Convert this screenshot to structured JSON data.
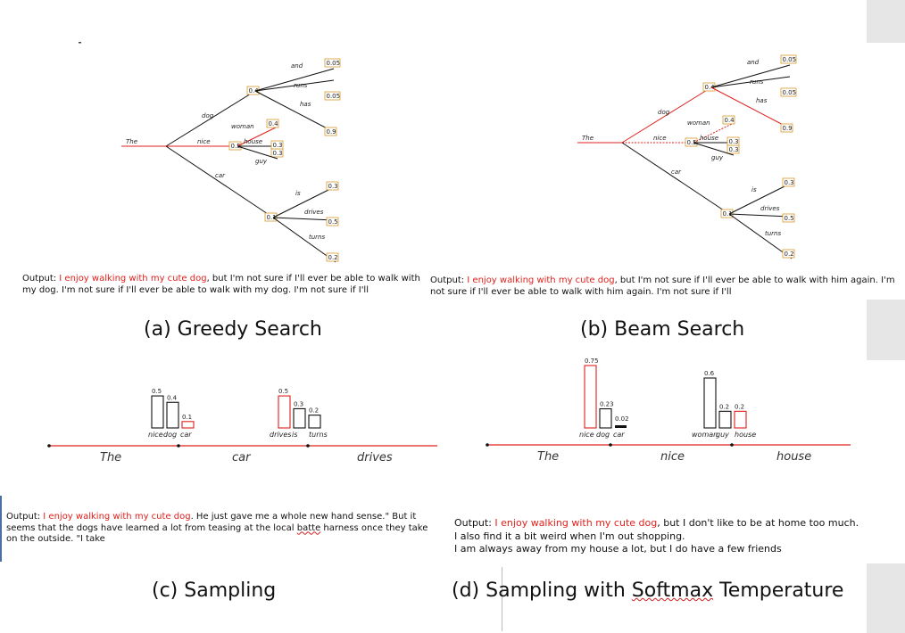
{
  "colors": {
    "highlight": "#e0201c",
    "prob_box": "#d49a2a",
    "line": "#111111",
    "window_edge": "#e6e6e6"
  },
  "panels": {
    "greedy": {
      "caption": "(a) Greedy Search",
      "output_prefix": "Output: ",
      "output_highlight": "I enjoy walking with my cute dog",
      "output_rest": ", but I'm not sure if I'll ever be able to walk with my dog. I'm not sure if I'll ever be able to walk with my dog. I'm not sure if I'll"
    },
    "beam": {
      "caption": "(b) Beam Search",
      "output_prefix": "Output: ",
      "output_highlight": "I enjoy walking with my cute dog",
      "output_rest": ", but I'm not sure if I'll ever be able to walk with him again. I'm not sure if I'll ever be able to walk with him again. I'm not sure if I'll"
    },
    "sampling": {
      "caption": "(c) Sampling",
      "output_prefix": "Output: ",
      "output_highlight": "I enjoy walking with my cute dog",
      "output_rest": ". He just gave me a whole new hand sense.\" But it seems that the dogs have learned a lot from teasing at the local ",
      "output_squiggle": "batte",
      "output_tail": " harness once they take on the outside. \"I take"
    },
    "temperature": {
      "caption_prefix": "(d) Sampling with ",
      "caption_squiggle": "Softmax",
      "caption_suffix": " Temperature",
      "output_prefix": "Output: ",
      "output_highlight": "I enjoy walking with my cute dog",
      "output_rest": ", but I don't like to be at home too much.",
      "output_line2": "I also find it a bit weird when I'm out shopping.",
      "output_line3": "I am always away from my house a lot, but I do have a few friends"
    }
  },
  "tree": {
    "root": "The",
    "level1": [
      {
        "word": "dog",
        "prob": "0.4"
      },
      {
        "word": "nice",
        "prob": "0.5"
      },
      {
        "word": "car",
        "prob": "0.1"
      }
    ],
    "level2": {
      "dog": [
        {
          "word": "and",
          "prob": "0.05"
        },
        {
          "word": "runs",
          "prob": "0.05"
        },
        {
          "word": "has",
          "prob": "0.9"
        }
      ],
      "nice": [
        {
          "word": "woman",
          "prob": "0.4"
        },
        {
          "word": "house",
          "prob": "0.3"
        },
        {
          "word": "guy",
          "prob": "0.3"
        }
      ],
      "car": [
        {
          "word": "is",
          "prob": "0.3"
        },
        {
          "word": "drives",
          "prob": "0.5"
        },
        {
          "word": "turns",
          "prob": "0.2"
        }
      ]
    }
  },
  "chart_data": [
    {
      "type": "bar",
      "panel": "(c) Sampling",
      "sequence": [
        "The",
        "car",
        "drives"
      ],
      "groups": [
        {
          "categories": [
            "nice",
            "dog",
            "car"
          ],
          "values": [
            0.5,
            0.4,
            0.1
          ],
          "selected": "car"
        },
        {
          "categories": [
            "drives",
            "is",
            "turns"
          ],
          "values": [
            0.5,
            0.3,
            0.2
          ],
          "selected": "drives"
        }
      ]
    },
    {
      "type": "bar",
      "panel": "(d) Sampling with Softmax Temperature",
      "sequence": [
        "The",
        "nice",
        "house"
      ],
      "groups": [
        {
          "categories": [
            "nice",
            "dog",
            "car"
          ],
          "values": [
            0.75,
            0.23,
            0.02
          ],
          "selected": "nice"
        },
        {
          "categories": [
            "woman",
            "guy",
            "house"
          ],
          "values": [
            0.6,
            0.2,
            0.2
          ],
          "selected": "house"
        }
      ]
    }
  ]
}
